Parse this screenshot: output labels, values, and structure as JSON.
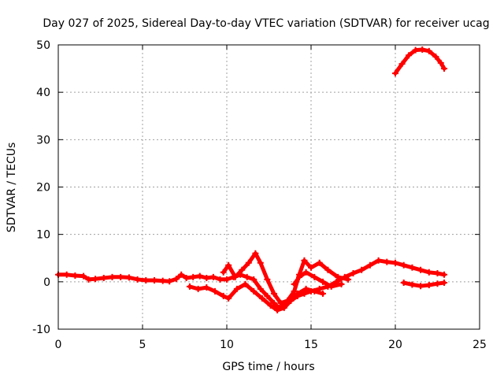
{
  "chart_data": {
    "type": "scatter",
    "title": "Day 027 of 2025, Sidereal Day-to-day VTEC variation (SDTVAR) for receiver ucag",
    "xlabel": "GPS time / hours",
    "ylabel": "SDTVAR / TECUs",
    "xlim": [
      0,
      25
    ],
    "ylim": [
      -10,
      50
    ],
    "xticks": [
      0,
      5,
      10,
      15,
      20,
      25
    ],
    "xtick_labels": [
      "0",
      "5",
      "10",
      "15",
      "20",
      "25"
    ],
    "yticks": [
      -10,
      0,
      10,
      20,
      30,
      40,
      50
    ],
    "ytick_labels": [
      "-10",
      "0",
      "10",
      "20",
      "30",
      "40",
      "50"
    ],
    "grid": true,
    "marker": "+",
    "color": "#ff0000",
    "series": [
      {
        "name": "main trace",
        "x": [
          0,
          0.5,
          1,
          1.5,
          1.8,
          2.2,
          2.7,
          3.2,
          3.7,
          4.2,
          4.7,
          5.2,
          5.7,
          6.2,
          6.6,
          7,
          7.3,
          7.6,
          8,
          8.4,
          8.8,
          9.2,
          9.6,
          10,
          10.4,
          10.8,
          11.2,
          11.6,
          12,
          12.4,
          12.8,
          13.1,
          13.4,
          13.8,
          14.2,
          14.6,
          15,
          15.5,
          16,
          16.5,
          17,
          17.5,
          18,
          18.5,
          19,
          19.5,
          20,
          20.5,
          21,
          21.5,
          22,
          22.5,
          22.9
        ],
        "y": [
          1.5,
          1.5,
          1.3,
          1.2,
          0.5,
          0.6,
          0.8,
          1,
          1,
          0.9,
          0.5,
          0.3,
          0.3,
          0.2,
          0.1,
          0.6,
          1.5,
          0.8,
          1,
          1.2,
          0.8,
          1,
          0.5,
          0.5,
          1,
          1.5,
          1,
          0.5,
          -1.5,
          -3,
          -4.5,
          -5.5,
          -5,
          -4,
          -3,
          -2.5,
          -2,
          -1.5,
          -1,
          0,
          1,
          1.8,
          2.5,
          3.5,
          4.5,
          4.2,
          4,
          3.5,
          3,
          2.5,
          2,
          1.8,
          1.5
        ]
      },
      {
        "name": "lower branch",
        "x": [
          7.8,
          8.3,
          8.8,
          9.3,
          9.8,
          10.1,
          10.6,
          11.1,
          11.6,
          12.1,
          12.6,
          13,
          13.4,
          13.8,
          14.2,
          14.7,
          15.2,
          15.7
        ],
        "y": [
          -1,
          -1.5,
          -1.2,
          -2,
          -3,
          -3.5,
          -1.5,
          -0.5,
          -2,
          -3.5,
          -5,
          -6,
          -5.5,
          -4,
          -2.5,
          -1.5,
          -2,
          -2.5
        ]
      },
      {
        "name": "upper branch",
        "x": [
          9.8,
          10.1,
          10.5,
          10.9,
          11.3,
          11.7,
          12,
          12.4,
          12.8,
          13.2,
          13.6,
          14,
          14.3,
          14.6,
          15,
          15.5,
          16,
          16.6,
          17.2
        ],
        "y": [
          2,
          3.5,
          1,
          2.5,
          4,
          6,
          4,
          0.5,
          -2.5,
          -4.5,
          -4,
          -2,
          1.5,
          4.5,
          3,
          4,
          2.5,
          1,
          0.5
        ]
      },
      {
        "name": "mid branch",
        "x": [
          14,
          14.3,
          14.7,
          15.2,
          15.7,
          16.2,
          16.8
        ],
        "y": [
          -0.5,
          1,
          2,
          1,
          0,
          -1,
          -0.5
        ]
      },
      {
        "name": "tail branch",
        "x": [
          20.5,
          21,
          21.5,
          22,
          22.5,
          22.9
        ],
        "y": [
          -0.2,
          -0.6,
          -0.9,
          -0.7,
          -0.4,
          -0.2
        ]
      },
      {
        "name": "arc",
        "x": [
          20,
          20.4,
          20.8,
          21.2,
          21.6,
          22,
          22.4,
          22.7,
          22.9
        ],
        "y": [
          44,
          46,
          47.8,
          48.9,
          49,
          48.7,
          47.5,
          46.2,
          45
        ]
      }
    ]
  }
}
